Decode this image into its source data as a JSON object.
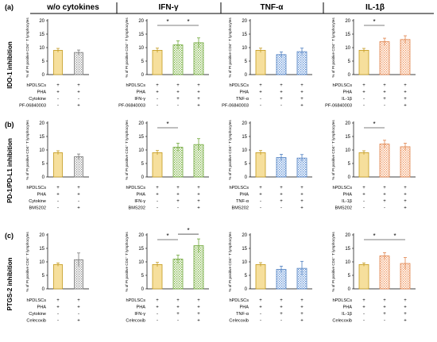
{
  "col_headers": [
    "w/o cytokines",
    "IFN-γ",
    "TNF-α",
    "IL-1β"
  ],
  "panel_tags": [
    "(a)",
    "(b)",
    "(c)"
  ],
  "row_labels": [
    "IDO-1 inhibition",
    "PD-1/PD-L1 inhibition",
    "PTGS-2 inhibition"
  ],
  "colors": {
    "yellow_fill": "#f6df9c",
    "yellow_edge": "#c49a1f",
    "grey_edge": "#7a7a7a",
    "green_edge": "#6fa73a",
    "blue_edge": "#4f7fc0",
    "orange_edge": "#e0844e"
  },
  "chart_data": [
    {
      "type": "bar",
      "panel": "(a)",
      "column": "w/o cytokines",
      "ylabel": "% of PI positive CD4⁺ T lymphocytes",
      "ylim": [
        0,
        20
      ],
      "yticks": [
        0,
        5,
        10,
        15,
        20
      ],
      "values": [
        9,
        8.2
      ],
      "errors": [
        0.7,
        0.9
      ],
      "styles": [
        "yellow",
        "grey"
      ],
      "conditions": [
        {
          "label": "hPDLSCs",
          "marks": [
            "+",
            "+"
          ]
        },
        {
          "label": "PHA",
          "marks": [
            "+",
            "+"
          ]
        },
        {
          "label": "Cytokine",
          "marks": [
            "-",
            "-"
          ]
        },
        {
          "label": "PF-06840003",
          "marks": [
            "-",
            "+"
          ]
        }
      ],
      "significance": []
    },
    {
      "type": "bar",
      "panel": "(a)",
      "column": "IFN-γ",
      "ylabel": "% of PI positive CD4⁺ T lymphocytes",
      "ylim": [
        0,
        20
      ],
      "yticks": [
        0,
        5,
        10,
        15,
        20
      ],
      "values": [
        9,
        11,
        11.8
      ],
      "errors": [
        0.8,
        1.5,
        1.8
      ],
      "styles": [
        "yellow",
        "green",
        "green"
      ],
      "conditions": [
        {
          "label": "hPDLSCs",
          "marks": [
            "+",
            "+",
            "+"
          ]
        },
        {
          "label": "PHA",
          "marks": [
            "+",
            "+",
            "+"
          ]
        },
        {
          "label": "IFN-γ",
          "marks": [
            "-",
            "+",
            "+"
          ]
        },
        {
          "label": "PF-06840003",
          "marks": [
            "-",
            "-",
            "+"
          ]
        }
      ],
      "significance": [
        {
          "from": 0,
          "to": 1,
          "label": "*"
        },
        {
          "from": 1,
          "to": 2,
          "label": "*"
        }
      ]
    },
    {
      "type": "bar",
      "panel": "(a)",
      "column": "TNF-α",
      "ylabel": "% of PI positive CD4⁺ T lymphocytes",
      "ylim": [
        0,
        20
      ],
      "yticks": [
        0,
        5,
        10,
        15,
        20
      ],
      "values": [
        9,
        7.4,
        8.5
      ],
      "errors": [
        0.8,
        1.0,
        1.3
      ],
      "styles": [
        "yellow",
        "blue",
        "blue"
      ],
      "conditions": [
        {
          "label": "hPDLSCs",
          "marks": [
            "+",
            "+",
            "+"
          ]
        },
        {
          "label": "PHA",
          "marks": [
            "+",
            "+",
            "+"
          ]
        },
        {
          "label": "TNF-α",
          "marks": [
            "-",
            "+",
            "+"
          ]
        },
        {
          "label": "PF-06840003",
          "marks": [
            "-",
            "-",
            "+"
          ]
        }
      ],
      "significance": []
    },
    {
      "type": "bar",
      "panel": "(a)",
      "column": "IL-1β",
      "ylabel": "% of PI positive CD4⁺ T lymphocytes",
      "ylim": [
        0,
        20
      ],
      "yticks": [
        0,
        5,
        10,
        15,
        20
      ],
      "values": [
        9,
        12.2,
        13
      ],
      "errors": [
        0.7,
        1.3,
        1.4
      ],
      "styles": [
        "yellow",
        "orange",
        "orange"
      ],
      "conditions": [
        {
          "label": "hPDLSCs",
          "marks": [
            "+",
            "+",
            "+"
          ]
        },
        {
          "label": "PHA",
          "marks": [
            "+",
            "+",
            "+"
          ]
        },
        {
          "label": "IL-1β",
          "marks": [
            "-",
            "+",
            "+"
          ]
        },
        {
          "label": "PF-06840003",
          "marks": [
            "-",
            "-",
            "+"
          ]
        }
      ],
      "significance": [
        {
          "from": 0,
          "to": 1,
          "label": "*"
        }
      ]
    },
    {
      "type": "bar",
      "panel": "(b)",
      "column": "w/o cytokines",
      "ylabel": "% of PI positive CD4⁺ T lymphocytes",
      "ylim": [
        0,
        20
      ],
      "yticks": [
        0,
        5,
        10,
        15,
        20
      ],
      "values": [
        9,
        7.5
      ],
      "errors": [
        0.7,
        1.0
      ],
      "styles": [
        "yellow",
        "grey"
      ],
      "conditions": [
        {
          "label": "hPDLSCs",
          "marks": [
            "+",
            "+"
          ]
        },
        {
          "label": "PHA",
          "marks": [
            "+",
            "+"
          ]
        },
        {
          "label": "Cytokine",
          "marks": [
            "-",
            "-"
          ]
        },
        {
          "label": "BMS202",
          "marks": [
            "-",
            "+"
          ]
        }
      ],
      "significance": []
    },
    {
      "type": "bar",
      "panel": "(b)",
      "column": "IFN-γ",
      "ylabel": "% of PI positive CD4⁺ T lymphocytes",
      "ylim": [
        0,
        20
      ],
      "yticks": [
        0,
        5,
        10,
        15,
        20
      ],
      "values": [
        9,
        11,
        12
      ],
      "errors": [
        0.8,
        1.5,
        2.2
      ],
      "styles": [
        "yellow",
        "green",
        "green"
      ],
      "conditions": [
        {
          "label": "hPDLSCs",
          "marks": [
            "+",
            "+",
            "+"
          ]
        },
        {
          "label": "PHA",
          "marks": [
            "+",
            "+",
            "+"
          ]
        },
        {
          "label": "IFN-γ",
          "marks": [
            "-",
            "+",
            "+"
          ]
        },
        {
          "label": "BMS202",
          "marks": [
            "-",
            "-",
            "+"
          ]
        }
      ],
      "significance": [
        {
          "from": 0,
          "to": 1,
          "label": "*"
        }
      ]
    },
    {
      "type": "bar",
      "panel": "(b)",
      "column": "TNF-α",
      "ylabel": "% of PI positive CD4⁺ T lymphocytes",
      "ylim": [
        0,
        20
      ],
      "yticks": [
        0,
        5,
        10,
        15,
        20
      ],
      "values": [
        9,
        7.2,
        7
      ],
      "errors": [
        0.8,
        1.2,
        1.3
      ],
      "styles": [
        "yellow",
        "blue",
        "blue"
      ],
      "conditions": [
        {
          "label": "hPDLSCs",
          "marks": [
            "+",
            "+",
            "+"
          ]
        },
        {
          "label": "PHA",
          "marks": [
            "+",
            "+",
            "+"
          ]
        },
        {
          "label": "TNF-α",
          "marks": [
            "-",
            "+",
            "+"
          ]
        },
        {
          "label": "BMS202",
          "marks": [
            "-",
            "-",
            "+"
          ]
        }
      ],
      "significance": []
    },
    {
      "type": "bar",
      "panel": "(b)",
      "column": "IL-1β",
      "ylabel": "% of PI positive CD4⁺ T lymphocytes",
      "ylim": [
        0,
        20
      ],
      "yticks": [
        0,
        5,
        10,
        15,
        20
      ],
      "values": [
        9,
        12.2,
        11.2
      ],
      "errors": [
        0.7,
        1.4,
        1.3
      ],
      "styles": [
        "yellow",
        "orange",
        "orange"
      ],
      "conditions": [
        {
          "label": "hPDLSCs",
          "marks": [
            "+",
            "+",
            "+"
          ]
        },
        {
          "label": "PHA",
          "marks": [
            "+",
            "+",
            "+"
          ]
        },
        {
          "label": "IL-1β",
          "marks": [
            "-",
            "+",
            "+"
          ]
        },
        {
          "label": "BMS202",
          "marks": [
            "-",
            "-",
            "+"
          ]
        }
      ],
      "significance": [
        {
          "from": 0,
          "to": 1,
          "label": "*"
        }
      ]
    },
    {
      "type": "bar",
      "panel": "(c)",
      "column": "w/o cytokines",
      "ylabel": "% of PI positive CD4⁺ T lymphocytes",
      "ylim": [
        0,
        20
      ],
      "yticks": [
        0,
        5,
        10,
        15,
        20
      ],
      "values": [
        9,
        10.8
      ],
      "errors": [
        0.6,
        2.5
      ],
      "styles": [
        "yellow",
        "grey"
      ],
      "conditions": [
        {
          "label": "hPDLSCs",
          "marks": [
            "+",
            "+"
          ]
        },
        {
          "label": "PHA",
          "marks": [
            "+",
            "+"
          ]
        },
        {
          "label": "Cytokine",
          "marks": [
            "-",
            "-"
          ]
        },
        {
          "label": "Celecoxib",
          "marks": [
            "-",
            "+"
          ]
        }
      ],
      "significance": []
    },
    {
      "type": "bar",
      "panel": "(c)",
      "column": "IFN-γ",
      "ylabel": "% of PI positive CD4⁺ T lymphocytes",
      "ylim": [
        0,
        20
      ],
      "yticks": [
        0,
        5,
        10,
        15,
        20
      ],
      "values": [
        9,
        11,
        16
      ],
      "errors": [
        0.8,
        1.5,
        2.5
      ],
      "styles": [
        "yellow",
        "green",
        "green"
      ],
      "conditions": [
        {
          "label": "hPDLSCs",
          "marks": [
            "+",
            "+",
            "+"
          ]
        },
        {
          "label": "PHA",
          "marks": [
            "+",
            "+",
            "+"
          ]
        },
        {
          "label": "IFN-γ",
          "marks": [
            "-",
            "+",
            "+"
          ]
        },
        {
          "label": "Celecoxib",
          "marks": [
            "-",
            "-",
            "+"
          ]
        }
      ],
      "significance": [
        {
          "from": 0,
          "to": 1,
          "label": "*"
        },
        {
          "from": 1,
          "to": 2,
          "label": "*"
        }
      ]
    },
    {
      "type": "bar",
      "panel": "(c)",
      "column": "TNF-α",
      "ylabel": "% of PI positive CD4⁺ T lymphocytes",
      "ylim": [
        0,
        20
      ],
      "yticks": [
        0,
        5,
        10,
        15,
        20
      ],
      "values": [
        9,
        7.2,
        7.6
      ],
      "errors": [
        0.7,
        1.2,
        2.6
      ],
      "styles": [
        "yellow",
        "blue",
        "blue"
      ],
      "conditions": [
        {
          "label": "hPDLSCs",
          "marks": [
            "+",
            "+",
            "+"
          ]
        },
        {
          "label": "PHA",
          "marks": [
            "+",
            "+",
            "+"
          ]
        },
        {
          "label": "TNF-α",
          "marks": [
            "-",
            "+",
            "+"
          ]
        },
        {
          "label": "Celecoxib",
          "marks": [
            "-",
            "-",
            "+"
          ]
        }
      ],
      "significance": []
    },
    {
      "type": "bar",
      "panel": "(c)",
      "column": "IL-1β",
      "ylabel": "% of PI positive CD4⁺ T lymphocytes",
      "ylim": [
        0,
        20
      ],
      "yticks": [
        0,
        5,
        10,
        15,
        20
      ],
      "values": [
        9,
        12.2,
        9.4
      ],
      "errors": [
        0.6,
        1.2,
        2.2
      ],
      "styles": [
        "yellow",
        "orange",
        "orange"
      ],
      "conditions": [
        {
          "label": "hPDLSCs",
          "marks": [
            "+",
            "+",
            "+"
          ]
        },
        {
          "label": "PHA",
          "marks": [
            "+",
            "+",
            "+"
          ]
        },
        {
          "label": "IL-1β",
          "marks": [
            "-",
            "+",
            "+"
          ]
        },
        {
          "label": "Celecoxib",
          "marks": [
            "-",
            "-",
            "+"
          ]
        }
      ],
      "significance": [
        {
          "from": 0,
          "to": 1,
          "label": "*"
        },
        {
          "from": 1,
          "to": 2,
          "label": "*"
        }
      ]
    }
  ]
}
